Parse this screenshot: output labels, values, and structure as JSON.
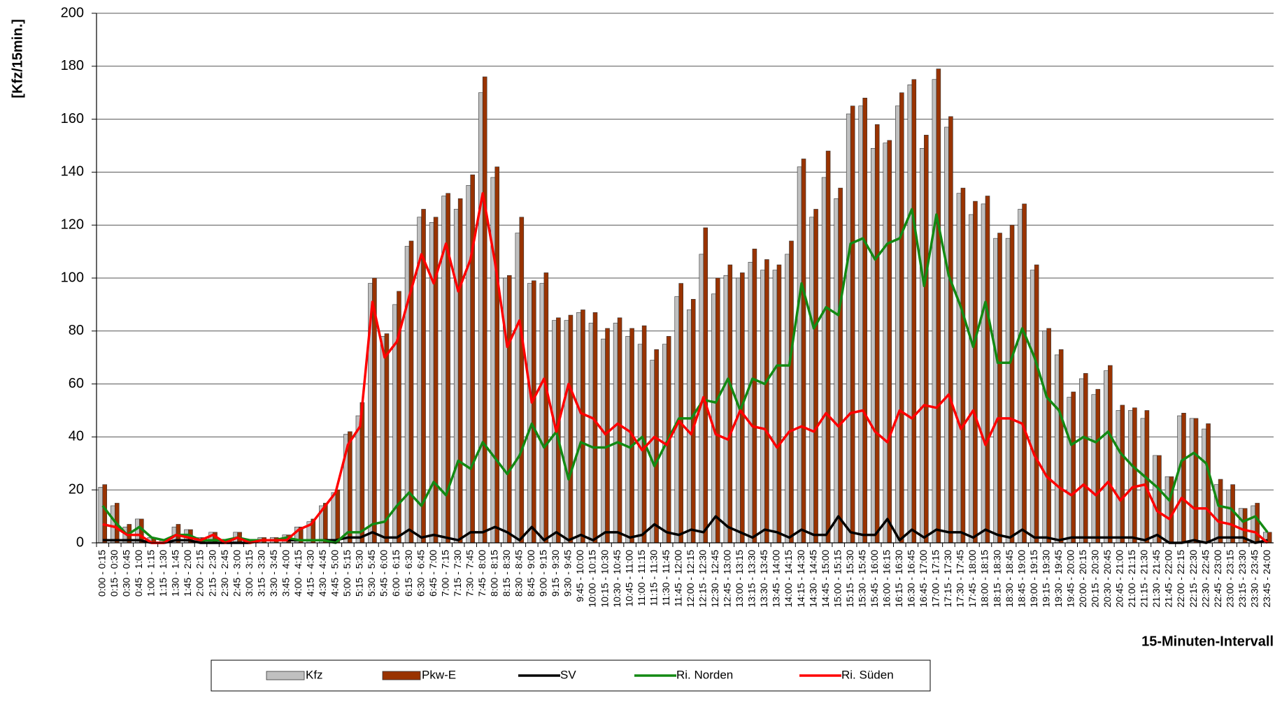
{
  "chart_data": {
    "type": "bar",
    "ylabel": "[Kfz/15min.]",
    "xlabel": "15-Minuten-Intervall",
    "ylim": [
      0,
      200
    ],
    "yticks": [
      0,
      20,
      40,
      60,
      80,
      100,
      120,
      140,
      160,
      180,
      200
    ],
    "grid": true,
    "legend": "bottom",
    "categories": [
      "0:00 - 0:15",
      "0:15 - 0:30",
      "0:30 - 0:45",
      "0:45 - 1:00",
      "1:00 - 1:15",
      "1:15 - 1:30",
      "1:30 - 1:45",
      "1:45 - 2:00",
      "2:00 - 2:15",
      "2:15 - 2:30",
      "2:30 - 2:45",
      "2:45 - 3:00",
      "3:00 - 3:15",
      "3:15 - 3:30",
      "3:30 - 3:45",
      "3:45 - 4:00",
      "4:00 - 4:15",
      "4:15 - 4:30",
      "4:30 - 4:45",
      "4:45 - 5:00",
      "5:00 - 5:15",
      "5:15 - 5:30",
      "5:30 - 5:45",
      "5:45 - 6:00",
      "6:00 - 6:15",
      "6:15 - 6:30",
      "6:30 - 6:45",
      "6:45 - 7:00",
      "7:00 - 7:15",
      "7:15 - 7:30",
      "7:30 - 7:45",
      "7:45 - 8:00",
      "8:00 - 8:15",
      "8:15 - 8:30",
      "8:30 - 8:45",
      "8:45 - 9:00",
      "9:00 - 9:15",
      "9:15 - 9:30",
      "9:30 - 9:45",
      "9:45 - 10:00",
      "10:00 - 10:15",
      "10:15 - 10:30",
      "10:30 - 10:45",
      "10:45 - 11:00",
      "11:00 - 11:15",
      "11:15 - 11:30",
      "11:30 - 11:45",
      "11:45 - 12:00",
      "12:00 - 12:15",
      "12:15 - 12:30",
      "12:30 - 12:45",
      "12:45 - 13:00",
      "13:00 - 13:15",
      "13:15 - 13:30",
      "13:30 - 13:45",
      "13:45 - 14:00",
      "14:00 - 14:15",
      "14:15 - 14:30",
      "14:30 - 14:45",
      "14:45 - 15:00",
      "15:00 - 15:15",
      "15:15 - 15:30",
      "15:30 - 15:45",
      "15:45 - 16:00",
      "16:00 - 16:15",
      "16:15 - 16:30",
      "16:30 - 16:45",
      "16:45 - 17:00",
      "17:00 - 17:15",
      "17:15 - 17:30",
      "17:30 - 17:45",
      "17:45 - 18:00",
      "18:00 - 18:15",
      "18:15 - 18:30",
      "18:30 - 18:45",
      "18:45 - 19:00",
      "19:00 - 19:15",
      "19:15 - 19:30",
      "19:30 - 19:45",
      "19:45 - 20:00",
      "20:00 - 20:15",
      "20:15 - 20:30",
      "20:30 - 20:45",
      "20:45 - 21:00",
      "21:00 - 21:15",
      "21:15 - 21:30",
      "21:30 - 21:45",
      "21:45 - 22:00",
      "22:00 - 22:15",
      "22:15 - 22:30",
      "22:30 - 22:45",
      "22:45 - 23:00",
      "23:00 - 23:15",
      "23:15 - 23:30",
      "23:30 - 23:45",
      "23:45 - 24:00"
    ],
    "series": [
      {
        "name": "Kfz",
        "style": "bar",
        "color": "#c0c0c0",
        "values": [
          21,
          14,
          6,
          9,
          2,
          1,
          6,
          5,
          2,
          4,
          1,
          4,
          1,
          2,
          2,
          3,
          6,
          8,
          14,
          19,
          41,
          48,
          98,
          78,
          90,
          112,
          123,
          121,
          131,
          126,
          135,
          170,
          138,
          100,
          117,
          98,
          98,
          84,
          84,
          87,
          83,
          77,
          83,
          78,
          75,
          69,
          75,
          93,
          88,
          109,
          94,
          101,
          100,
          106,
          103,
          103,
          109,
          142,
          123,
          138,
          130,
          162,
          165,
          149,
          151,
          165,
          173,
          149,
          175,
          157,
          132,
          124,
          128,
          115,
          115,
          126,
          103,
          80,
          71,
          55,
          62,
          56,
          65,
          50,
          50,
          47,
          33,
          25,
          48,
          47,
          43,
          22,
          20,
          13,
          14,
          4
        ]
      },
      {
        "name": "Pkw-E",
        "style": "bar",
        "color": "#993300",
        "values": [
          22,
          15,
          7,
          9,
          2,
          1,
          7,
          5,
          2,
          4,
          1,
          4,
          1,
          2,
          2,
          3,
          6,
          9,
          15,
          20,
          42,
          53,
          100,
          79,
          95,
          114,
          126,
          123,
          132,
          130,
          139,
          176,
          142,
          101,
          123,
          99,
          102,
          85,
          86,
          88,
          87,
          81,
          85,
          81,
          82,
          73,
          78,
          98,
          92,
          119,
          100,
          105,
          102,
          111,
          107,
          105,
          114,
          145,
          126,
          148,
          134,
          165,
          168,
          158,
          152,
          170,
          175,
          154,
          179,
          161,
          134,
          129,
          131,
          117,
          120,
          128,
          105,
          81,
          73,
          57,
          64,
          58,
          67,
          52,
          51,
          50,
          33,
          25,
          49,
          47,
          45,
          24,
          22,
          13,
          15,
          4
        ]
      },
      {
        "name": "SV",
        "style": "line",
        "color": "#000000",
        "values": [
          1,
          1,
          1,
          1,
          0,
          0,
          1,
          1,
          0,
          0,
          0,
          0,
          0,
          1,
          1,
          1,
          1,
          1,
          1,
          1,
          2,
          2,
          4,
          2,
          2,
          5,
          2,
          3,
          2,
          1,
          4,
          4,
          6,
          4,
          1,
          6,
          1,
          4,
          1,
          3,
          1,
          4,
          4,
          2,
          3,
          7,
          4,
          3,
          5,
          4,
          10,
          6,
          4,
          2,
          5,
          4,
          2,
          5,
          3,
          3,
          10,
          4,
          3,
          3,
          9,
          1,
          5,
          2,
          5,
          4,
          4,
          2,
          5,
          3,
          2,
          5,
          2,
          2,
          1,
          2,
          2,
          2,
          2,
          2,
          2,
          1,
          3,
          0,
          0,
          1,
          0,
          2,
          2,
          2,
          0,
          1
        ]
      },
      {
        "name": "Ri. Norden",
        "style": "line",
        "color": "#138a13",
        "values": [
          14,
          8,
          3,
          6,
          2,
          1,
          3,
          3,
          1,
          1,
          1,
          2,
          1,
          1,
          1,
          2,
          1,
          1,
          1,
          0,
          4,
          4,
          7,
          8,
          14,
          19,
          14,
          23,
          18,
          31,
          28,
          38,
          32,
          26,
          33,
          45,
          36,
          42,
          24,
          38,
          36,
          36,
          38,
          36,
          40,
          29,
          38,
          47,
          47,
          54,
          53,
          62,
          50,
          62,
          60,
          67,
          67,
          98,
          81,
          89,
          86,
          113,
          115,
          107,
          113,
          115,
          126,
          97,
          124,
          101,
          89,
          74,
          91,
          68,
          68,
          81,
          70,
          55,
          50,
          37,
          40,
          38,
          42,
          34,
          29,
          25,
          21,
          16,
          31,
          34,
          30,
          14,
          13,
          8,
          10,
          4
        ]
      },
      {
        "name": "Ri. Süden",
        "style": "line",
        "color": "#ff0000",
        "values": [
          7,
          6,
          3,
          3,
          0,
          0,
          3,
          2,
          1,
          3,
          0,
          2,
          0,
          1,
          1,
          1,
          5,
          7,
          13,
          19,
          37,
          44,
          91,
          70,
          76,
          93,
          109,
          98,
          113,
          95,
          107,
          132,
          106,
          74,
          84,
          53,
          62,
          42,
          60,
          49,
          47,
          41,
          45,
          42,
          35,
          40,
          37,
          46,
          41,
          55,
          41,
          39,
          50,
          44,
          43,
          36,
          42,
          44,
          42,
          49,
          44,
          49,
          50,
          42,
          38,
          50,
          47,
          52,
          51,
          56,
          43,
          50,
          37,
          47,
          47,
          45,
          33,
          25,
          21,
          18,
          22,
          18,
          23,
          16,
          21,
          22,
          12,
          9,
          17,
          13,
          13,
          8,
          7,
          5,
          4,
          0
        ]
      }
    ]
  }
}
